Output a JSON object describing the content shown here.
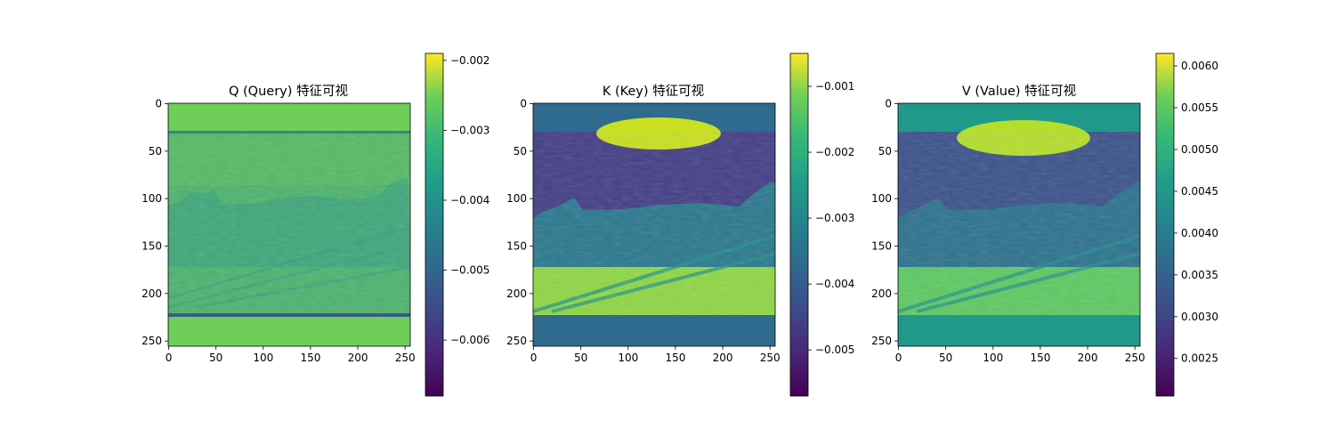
{
  "chart_data": [
    {
      "type": "heatmap",
      "title": "Q (Query) 特征可视",
      "xlim": [
        0,
        255
      ],
      "ylim": [
        255,
        0
      ],
      "x_ticks": [
        "0",
        "50",
        "100",
        "150",
        "200",
        "250"
      ],
      "y_ticks": [
        "0",
        "50",
        "100",
        "150",
        "200",
        "250"
      ],
      "colormap": "viridis",
      "color_range": [
        -0.0068,
        -0.0019
      ],
      "colorbar_ticks": [
        "−0.002",
        "−0.003",
        "−0.004",
        "−0.005",
        "−0.006"
      ],
      "colorbar_values": [
        -0.002,
        -0.003,
        -0.004,
        -0.005,
        -0.006
      ],
      "padding_value": -0.0028,
      "rows_padded": [
        [
          0,
          30
        ],
        [
          224,
          255
        ]
      ],
      "content_description_values": {
        "sky": -0.0031,
        "buildings": -0.0036,
        "ground": -0.0037
      }
    },
    {
      "type": "heatmap",
      "title": "K (Key) 特征可视",
      "xlim": [
        0,
        255
      ],
      "ylim": [
        255,
        0
      ],
      "x_ticks": [
        "0",
        "50",
        "100",
        "150",
        "200",
        "250"
      ],
      "y_ticks": [
        "0",
        "50",
        "100",
        "150",
        "200",
        "250"
      ],
      "colormap": "viridis",
      "color_range": [
        -0.0057,
        -0.0005
      ],
      "colorbar_ticks": [
        "−0.001",
        "−0.002",
        "−0.003",
        "−0.004",
        "−0.005"
      ],
      "colorbar_values": [
        -0.001,
        -0.002,
        -0.003,
        -0.004,
        -0.005
      ],
      "padding_value": -0.0037,
      "rows_padded": [
        [
          0,
          30
        ],
        [
          224,
          255
        ]
      ],
      "content_description_values": {
        "sky": -0.005,
        "buildings": -0.003,
        "ground": -0.0017
      }
    },
    {
      "type": "heatmap",
      "title": "V (Value) 特征可视",
      "xlim": [
        0,
        255
      ],
      "ylim": [
        255,
        0
      ],
      "x_ticks": [
        "0",
        "50",
        "100",
        "150",
        "200",
        "250"
      ],
      "y_ticks": [
        "0",
        "50",
        "100",
        "150",
        "200",
        "250"
      ],
      "colormap": "viridis",
      "color_range": [
        0.00205,
        0.00615
      ],
      "colorbar_ticks": [
        "0.0060",
        "0.0055",
        "0.0050",
        "0.0045",
        "0.0040",
        "0.0035",
        "0.0030",
        "0.0025"
      ],
      "colorbar_values": [
        0.006,
        0.0055,
        0.005,
        0.0045,
        0.004,
        0.0035,
        0.003,
        0.0025
      ],
      "padding_value": 0.0043,
      "rows_padded": [
        [
          0,
          30
        ],
        [
          224,
          255
        ]
      ],
      "content_description_values": {
        "sky": 0.0033,
        "buildings": 0.004,
        "ground": 0.0049
      }
    }
  ]
}
